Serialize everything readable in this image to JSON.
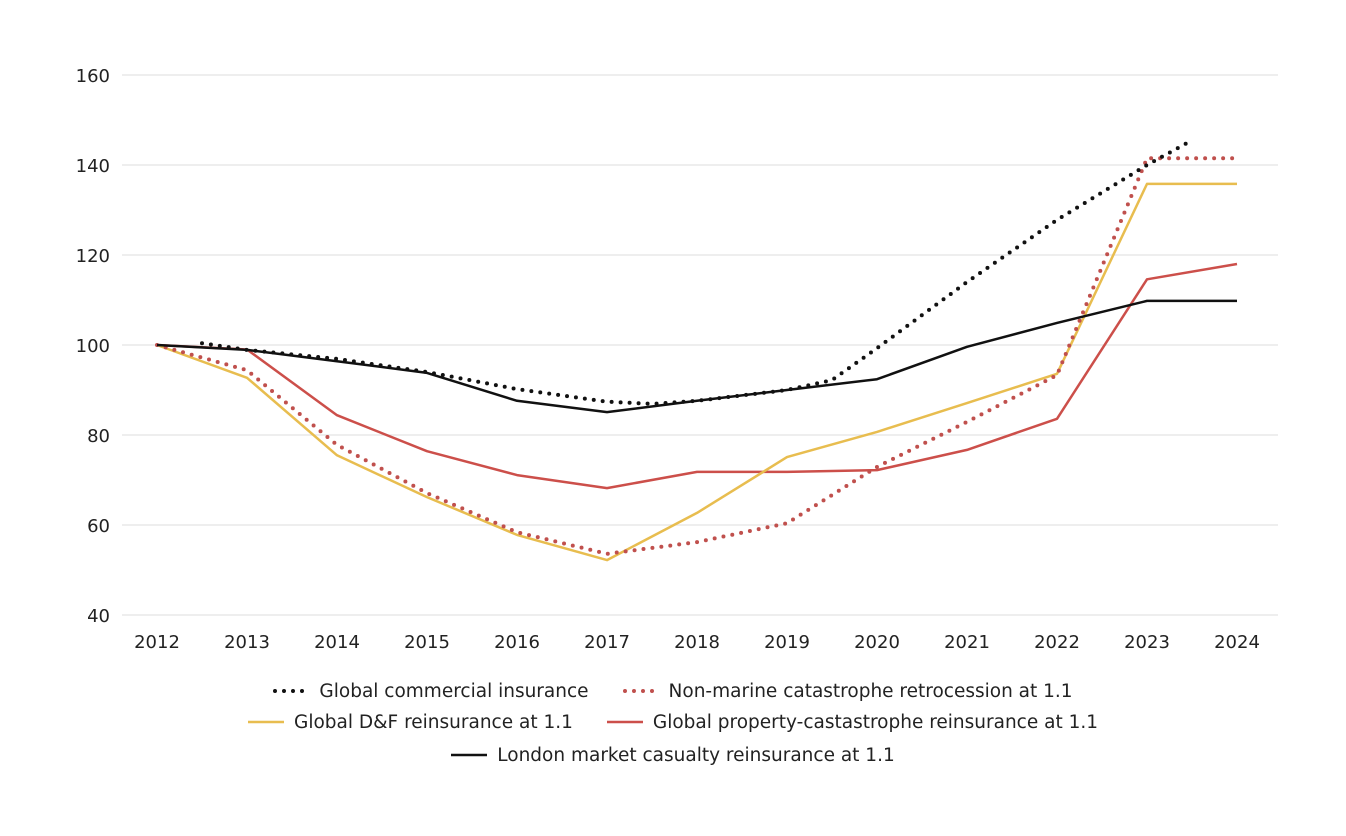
{
  "chart_data": {
    "type": "line",
    "title": "",
    "xlabel": "",
    "ylabel": "",
    "ylim": [
      40,
      160
    ],
    "xlim": [
      2012,
      2024
    ],
    "yticks": [
      "40",
      "60",
      "80",
      "100",
      "120",
      "140",
      "160"
    ],
    "xticks": [
      "2012",
      "2013",
      "2014",
      "2015",
      "2016",
      "2017",
      "2018",
      "2019",
      "2020",
      "2021",
      "2022",
      "2023",
      "2024"
    ],
    "grid": "horizontal",
    "legend_position": "bottom-center",
    "series": [
      {
        "name": "Global commercial insurance",
        "color": "#111111",
        "style": "dotted",
        "x": [
          2012.5,
          2013,
          2014,
          2015,
          2016,
          2017,
          2017.5,
          2018,
          2019,
          2019.5,
          2020,
          2021,
          2022,
          2023,
          2023.5
        ],
        "values": [
          100.4,
          98.9,
          96.9,
          94.0,
          90.2,
          87.4,
          86.9,
          87.6,
          90.0,
          92.2,
          99.3,
          114.0,
          127.8,
          140.0,
          145.5
        ]
      },
      {
        "name": "Non-marine catastrophe retrocession at 1.1",
        "color": "#C0504D",
        "style": "dotted",
        "x": [
          2012,
          2013,
          2014,
          2015,
          2016,
          2017,
          2018,
          2019,
          2020,
          2021,
          2022,
          2023,
          2024
        ],
        "values": [
          100,
          94.4,
          77.8,
          67.1,
          58.4,
          53.6,
          56.2,
          60.4,
          72.9,
          82.9,
          93.3,
          141.5,
          141.5
        ]
      },
      {
        "name": "Global D&F reinsurance at 1.1",
        "color": "#E8BD4F",
        "style": "solid",
        "x": [
          2012,
          2013,
          2014,
          2015,
          2016,
          2017,
          2018,
          2019,
          2020,
          2021,
          2022,
          2023,
          2024
        ],
        "values": [
          100,
          92.7,
          75.5,
          66.2,
          57.8,
          52.2,
          62.7,
          75.1,
          80.7,
          87.1,
          93.6,
          135.8,
          135.8
        ]
      },
      {
        "name": "Global property-castastrophe reinsurance at 1.1",
        "color": "#CC4F4A",
        "style": "solid",
        "x": [
          2012,
          2013,
          2014,
          2015,
          2016,
          2017,
          2018,
          2019,
          2020,
          2021,
          2022,
          2023,
          2024
        ],
        "values": [
          100,
          99.0,
          84.4,
          76.4,
          71.1,
          68.2,
          71.8,
          71.8,
          72.2,
          76.7,
          83.6,
          114.6,
          118.0
        ]
      },
      {
        "name": "London market casualty reinsurance at 1.1",
        "color": "#111111",
        "style": "solid",
        "x": [
          2012,
          2013,
          2014,
          2015,
          2016,
          2017,
          2018,
          2019,
          2020,
          2021,
          2022,
          2023,
          2024
        ],
        "values": [
          100,
          98.9,
          96.4,
          93.8,
          87.6,
          85.1,
          87.6,
          90.0,
          92.4,
          99.6,
          104.9,
          109.8,
          109.8
        ]
      }
    ]
  },
  "legend": {
    "rows": [
      [
        0,
        1
      ],
      [
        2,
        3
      ],
      [
        4
      ]
    ]
  }
}
